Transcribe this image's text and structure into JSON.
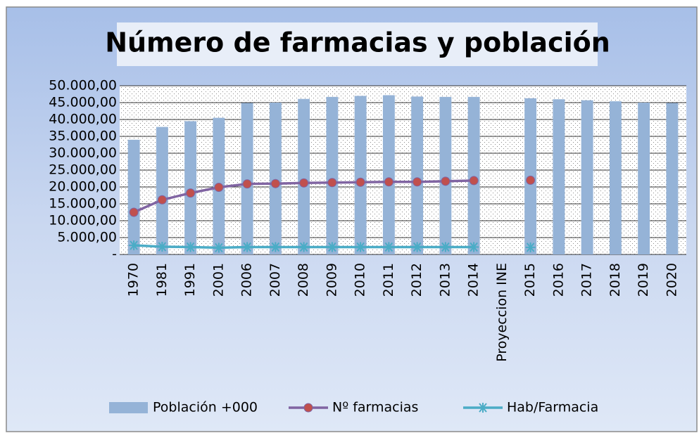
{
  "chart_data": {
    "type": "bar_line",
    "title": "Número de farmacias y población",
    "categories": [
      "1970",
      "1981",
      "1991",
      "2001",
      "2006",
      "2007",
      "2008",
      "2009",
      "2010",
      "2011",
      "2012",
      "2013",
      "2014",
      "Proyeccion INE",
      "2015",
      "2016",
      "2017",
      "2018",
      "2019",
      "2020"
    ],
    "series": [
      {
        "name": "Población +000",
        "type": "bar",
        "color": "#95b3d7",
        "values": [
          34000,
          37800,
          39500,
          40500,
          44900,
          45000,
          46100,
          46700,
          47000,
          47200,
          46800,
          46700,
          46700,
          null,
          46300,
          46000,
          45700,
          45400,
          45000,
          44900
        ]
      },
      {
        "name": "Nº farmacias",
        "type": "line",
        "color": "#8064a2",
        "marker": "circle",
        "marker_color": "#c0504d",
        "values": [
          12500,
          16200,
          18200,
          19900,
          20900,
          21000,
          21200,
          21300,
          21400,
          21500,
          21500,
          21700,
          21900,
          null,
          22000,
          null,
          null,
          null,
          null,
          null
        ]
      },
      {
        "name": "Hab/Farmacia",
        "type": "line",
        "color": "#4bacc6",
        "marker": "asterisk",
        "marker_color": "#4bacc6",
        "values": [
          2700,
          2300,
          2200,
          2000,
          2200,
          2200,
          2200,
          2200,
          2200,
          2200,
          2200,
          2200,
          2200,
          null,
          2100,
          null,
          null,
          null,
          null,
          null
        ]
      }
    ],
    "ylim": [
      0,
      50000
    ],
    "yticks": [
      {
        "value": 0,
        "label": "-"
      },
      {
        "value": 5000,
        "label": "5.000,00"
      },
      {
        "value": 10000,
        "label": "10.000,00"
      },
      {
        "value": 15000,
        "label": "15.000,00"
      },
      {
        "value": 20000,
        "label": "20.000,00"
      },
      {
        "value": 25000,
        "label": "25.000,00"
      },
      {
        "value": 30000,
        "label": "30.000,00"
      },
      {
        "value": 35000,
        "label": "35.000,00"
      },
      {
        "value": 40000,
        "label": "40.000,00"
      },
      {
        "value": 45000,
        "label": "45.000,00"
      },
      {
        "value": 50000,
        "label": "50.000,00"
      }
    ],
    "grid": true,
    "legend": "bottom"
  }
}
